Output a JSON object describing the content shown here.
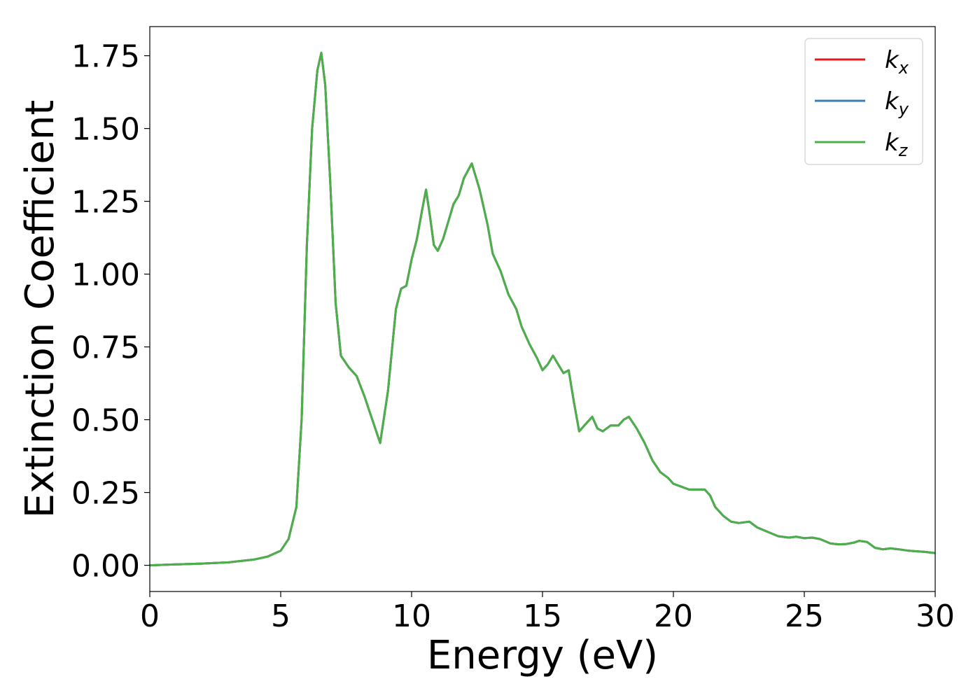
{
  "chart_data": {
    "type": "line",
    "title": "",
    "xlabel": "Energy (eV)",
    "ylabel": "Extinction Coefficient",
    "xlim": [
      0,
      30
    ],
    "ylim": [
      -0.09,
      1.85
    ],
    "xticks": [
      0,
      5,
      10,
      15,
      20,
      25,
      30
    ],
    "xtick_labels": [
      "0",
      "5",
      "10",
      "15",
      "20",
      "25",
      "30"
    ],
    "yticks": [
      0.0,
      0.25,
      0.5,
      0.75,
      1.0,
      1.25,
      1.5,
      1.75
    ],
    "ytick_labels": [
      "0.00",
      "0.25",
      "0.50",
      "0.75",
      "1.00",
      "1.25",
      "1.50",
      "1.75"
    ],
    "grid": false,
    "legend_position": "top-right",
    "series": [
      {
        "name": "k",
        "subscript": "x",
        "color": "#e41a1c"
      },
      {
        "name": "k",
        "subscript": "y",
        "color": "#377eb8"
      },
      {
        "name": "k",
        "subscript": "z",
        "color": "#4daf4a"
      }
    ],
    "x": [
      0,
      1,
      2,
      3,
      4,
      4.5,
      5,
      5.3,
      5.6,
      5.8,
      6.0,
      6.2,
      6.4,
      6.55,
      6.7,
      6.9,
      7.1,
      7.3,
      7.6,
      7.9,
      8.2,
      8.5,
      8.8,
      9.1,
      9.4,
      9.6,
      9.8,
      10.0,
      10.2,
      10.4,
      10.55,
      10.7,
      10.85,
      11.0,
      11.2,
      11.4,
      11.6,
      11.8,
      12.0,
      12.3,
      12.6,
      12.9,
      13.1,
      13.4,
      13.7,
      14.0,
      14.2,
      14.5,
      14.8,
      15.0,
      15.2,
      15.4,
      15.6,
      15.8,
      16.0,
      16.2,
      16.4,
      16.6,
      16.9,
      17.1,
      17.3,
      17.6,
      17.9,
      18.1,
      18.3,
      18.6,
      18.9,
      19.2,
      19.5,
      19.8,
      20.0,
      20.3,
      20.6,
      20.9,
      21.2,
      21.4,
      21.6,
      21.9,
      22.2,
      22.5,
      22.9,
      23.2,
      23.6,
      24.0,
      24.4,
      24.7,
      25.0,
      25.3,
      25.6,
      26.0,
      26.3,
      26.6,
      26.9,
      27.1,
      27.4,
      27.7,
      28.0,
      28.3,
      28.6,
      29.0,
      29.3,
      29.6,
      30.0
    ],
    "y": [
      0.0,
      0.003,
      0.006,
      0.01,
      0.02,
      0.03,
      0.05,
      0.09,
      0.2,
      0.5,
      1.1,
      1.5,
      1.7,
      1.76,
      1.65,
      1.3,
      0.9,
      0.72,
      0.68,
      0.65,
      0.58,
      0.5,
      0.42,
      0.6,
      0.88,
      0.95,
      0.96,
      1.05,
      1.12,
      1.22,
      1.29,
      1.2,
      1.1,
      1.08,
      1.12,
      1.18,
      1.24,
      1.27,
      1.33,
      1.38,
      1.29,
      1.17,
      1.07,
      1.01,
      0.93,
      0.88,
      0.82,
      0.76,
      0.71,
      0.67,
      0.69,
      0.72,
      0.69,
      0.66,
      0.67,
      0.56,
      0.46,
      0.48,
      0.51,
      0.47,
      0.46,
      0.48,
      0.48,
      0.5,
      0.51,
      0.47,
      0.42,
      0.36,
      0.32,
      0.3,
      0.28,
      0.27,
      0.26,
      0.26,
      0.26,
      0.24,
      0.2,
      0.17,
      0.15,
      0.145,
      0.15,
      0.13,
      0.115,
      0.1,
      0.095,
      0.098,
      0.093,
      0.095,
      0.09,
      0.075,
      0.072,
      0.073,
      0.078,
      0.084,
      0.08,
      0.06,
      0.055,
      0.058,
      0.055,
      0.05,
      0.048,
      0.046,
      0.042
    ]
  }
}
